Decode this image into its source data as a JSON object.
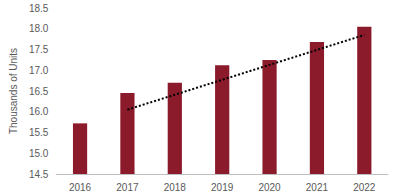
{
  "chart_data": {
    "type": "bar",
    "y_label": "Thousands of Units",
    "categories": [
      "2016",
      "2017",
      "2018",
      "2019",
      "2020",
      "2021",
      "2022"
    ],
    "series": [
      {
        "type": "bar",
        "color": "#8b1a2b",
        "values": [
          15.72,
          16.45,
          16.7,
          17.12,
          17.25,
          17.68,
          18.05
        ]
      },
      {
        "type": "line",
        "line_style": "dotted",
        "color": "#000000",
        "values": [
          null,
          16.05,
          16.41,
          16.77,
          17.13,
          17.49,
          17.85
        ]
      }
    ],
    "ylim": [
      14.5,
      18.5
    ],
    "yticks": [
      14.5,
      {
        "value": 15,
        "label": "15.0"
      },
      15.5,
      {
        "value": 16,
        "label": "16.0"
      },
      16.5,
      {
        "value": 17,
        "label": "17.0"
      },
      17.5,
      {
        "value": 18,
        "label": "18.0"
      },
      18.5
    ],
    "grid": false
  }
}
